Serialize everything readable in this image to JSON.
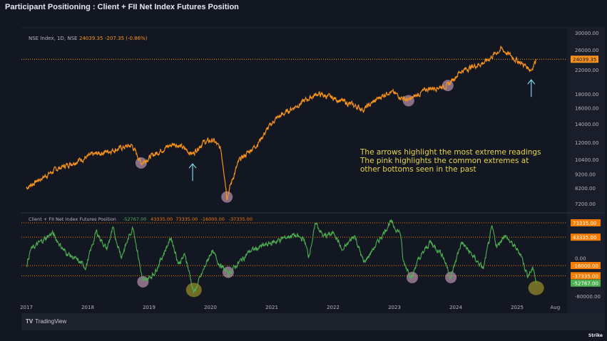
{
  "title": "Participant Positioning : Client + FII Net Index Futures Position",
  "footer": {
    "brand": "TradingView",
    "watermark": "Strike"
  },
  "colors": {
    "price": "#f7931a",
    "position": "#4caf50",
    "level": "#f57c00",
    "pink": "#e8b4d8",
    "olive": "#a49a2a",
    "arrow": "#7fd4e6",
    "annotation": "#e8d44d"
  },
  "chart_data": [
    {
      "type": "line",
      "title": "NSE Index, 1D, NSE",
      "legend": {
        "last": "24039.35",
        "change": "-207.35",
        "change_pct": "(-0.86%)"
      },
      "scale": "log",
      "ylim": [
        7000,
        31000
      ],
      "yticks": [
        "30000.00",
        "26000.00",
        "22000.00",
        "18000.00",
        "16000.00",
        "14000.00",
        "12000.00",
        "10400.00",
        "9200.00",
        "8200.00",
        "7200.00"
      ],
      "last_value_label": "24039.35",
      "points": [
        [
          2017.0,
          8200
        ],
        [
          2017.5,
          9600
        ],
        [
          2018.08,
          10800
        ],
        [
          2018.72,
          11700
        ],
        [
          2018.87,
          10100
        ],
        [
          2019.24,
          11400
        ],
        [
          2019.42,
          11900
        ],
        [
          2019.71,
          10900
        ],
        [
          2019.88,
          12000
        ],
        [
          2020.05,
          12200
        ],
        [
          2020.17,
          11300
        ],
        [
          2020.27,
          7600
        ],
        [
          2020.47,
          10300
        ],
        [
          2020.76,
          11800
        ],
        [
          2021.05,
          14500
        ],
        [
          2021.74,
          18000
        ],
        [
          2022.03,
          17300
        ],
        [
          2022.5,
          15800
        ],
        [
          2022.91,
          18400
        ],
        [
          2023.23,
          17000
        ],
        [
          2023.55,
          18800
        ],
        [
          2023.87,
          19300
        ],
        [
          2024.07,
          21700
        ],
        [
          2024.48,
          23500
        ],
        [
          2024.74,
          26200
        ],
        [
          2025.0,
          23800
        ],
        [
          2025.23,
          22000
        ],
        [
          2025.31,
          24039.35
        ]
      ],
      "pink_highlights": [
        [
          2018.87,
          10100
        ],
        [
          2020.27,
          7600
        ],
        [
          2023.23,
          17000
        ],
        [
          2023.87,
          19300
        ]
      ],
      "arrows": [
        [
          2019.71,
          10900
        ],
        [
          2025.23,
          22000
        ]
      ],
      "annotation": [
        "The arrows highlight the most extreme readings",
        "The pink highlights the common extremes at",
        "other bottoms seen in the past"
      ]
    },
    {
      "type": "line",
      "title": "Client + FII Net Index Futures Position",
      "legend_values": [
        "-52767.00",
        "43335.00",
        "73335.00",
        "-16000.00",
        "-37335.00"
      ],
      "ylim": [
        -82000,
        80000
      ],
      "yticks": [
        "0.00",
        "-80000.00"
      ],
      "levels": [
        {
          "value": 73335,
          "label": "73335.00"
        },
        {
          "value": 43335,
          "label": "43335.00"
        },
        {
          "value": -16000,
          "label": "-16000.00"
        },
        {
          "value": -37335,
          "label": "-37335.00"
        }
      ],
      "last_value_label": "-52767.00",
      "points": [
        [
          2017.0,
          -16000
        ],
        [
          2017.07,
          17000
        ],
        [
          2017.42,
          52000
        ],
        [
          2017.62,
          14000
        ],
        [
          2017.97,
          -19000
        ],
        [
          2018.14,
          55000
        ],
        [
          2018.31,
          18000
        ],
        [
          2018.41,
          60000
        ],
        [
          2018.55,
          3000
        ],
        [
          2018.74,
          66000
        ],
        [
          2018.9,
          -52000
        ],
        [
          2019.09,
          -31000
        ],
        [
          2019.36,
          43000
        ],
        [
          2019.48,
          -12000
        ],
        [
          2019.59,
          6000
        ],
        [
          2019.73,
          -74000
        ],
        [
          2020.02,
          15000
        ],
        [
          2020.14,
          -11000
        ],
        [
          2020.29,
          -34000
        ],
        [
          2020.64,
          14000
        ],
        [
          2021.34,
          48000
        ],
        [
          2021.53,
          38000
        ],
        [
          2021.6,
          3000
        ],
        [
          2021.72,
          73000
        ],
        [
          2021.84,
          45000
        ],
        [
          2022.03,
          52000
        ],
        [
          2022.15,
          14000
        ],
        [
          2022.35,
          48000
        ],
        [
          2022.5,
          -11000
        ],
        [
          2022.73,
          33000
        ],
        [
          2022.93,
          75000
        ],
        [
          2023.1,
          51000
        ],
        [
          2023.14,
          -7000
        ],
        [
          2023.29,
          -41000
        ],
        [
          2023.35,
          -14000
        ],
        [
          2023.58,
          33000
        ],
        [
          2023.78,
          8000
        ],
        [
          2023.92,
          -41000
        ],
        [
          2024.09,
          33000
        ],
        [
          2024.45,
          -23000
        ],
        [
          2024.59,
          63000
        ],
        [
          2024.67,
          23000
        ],
        [
          2024.79,
          48000
        ],
        [
          2025.06,
          8000
        ],
        [
          2025.17,
          -37000
        ],
        [
          2025.27,
          -22000
        ],
        [
          2025.31,
          -52767
        ]
      ],
      "pink_highlights": [
        [
          2018.9,
          -50000
        ],
        [
          2020.29,
          -30000
        ],
        [
          2023.29,
          -41000
        ],
        [
          2023.92,
          -41000
        ]
      ],
      "olive_highlights": [
        [
          2019.73,
          -67000
        ],
        [
          2025.31,
          -63000
        ]
      ]
    }
  ],
  "xaxis": {
    "ticks": [
      {
        "year": 2017,
        "label": "2017"
      },
      {
        "year": 2018,
        "label": "2018"
      },
      {
        "year": 2019,
        "label": "2019"
      },
      {
        "year": 2020,
        "label": "2020"
      },
      {
        "year": 2021,
        "label": "2021"
      },
      {
        "year": 2022,
        "label": "2022"
      },
      {
        "year": 2023,
        "label": "2023"
      },
      {
        "year": 2024,
        "label": "2024"
      },
      {
        "year": 2025,
        "label": "2025"
      },
      {
        "year": 2025.62,
        "label": "Aug"
      }
    ]
  }
}
